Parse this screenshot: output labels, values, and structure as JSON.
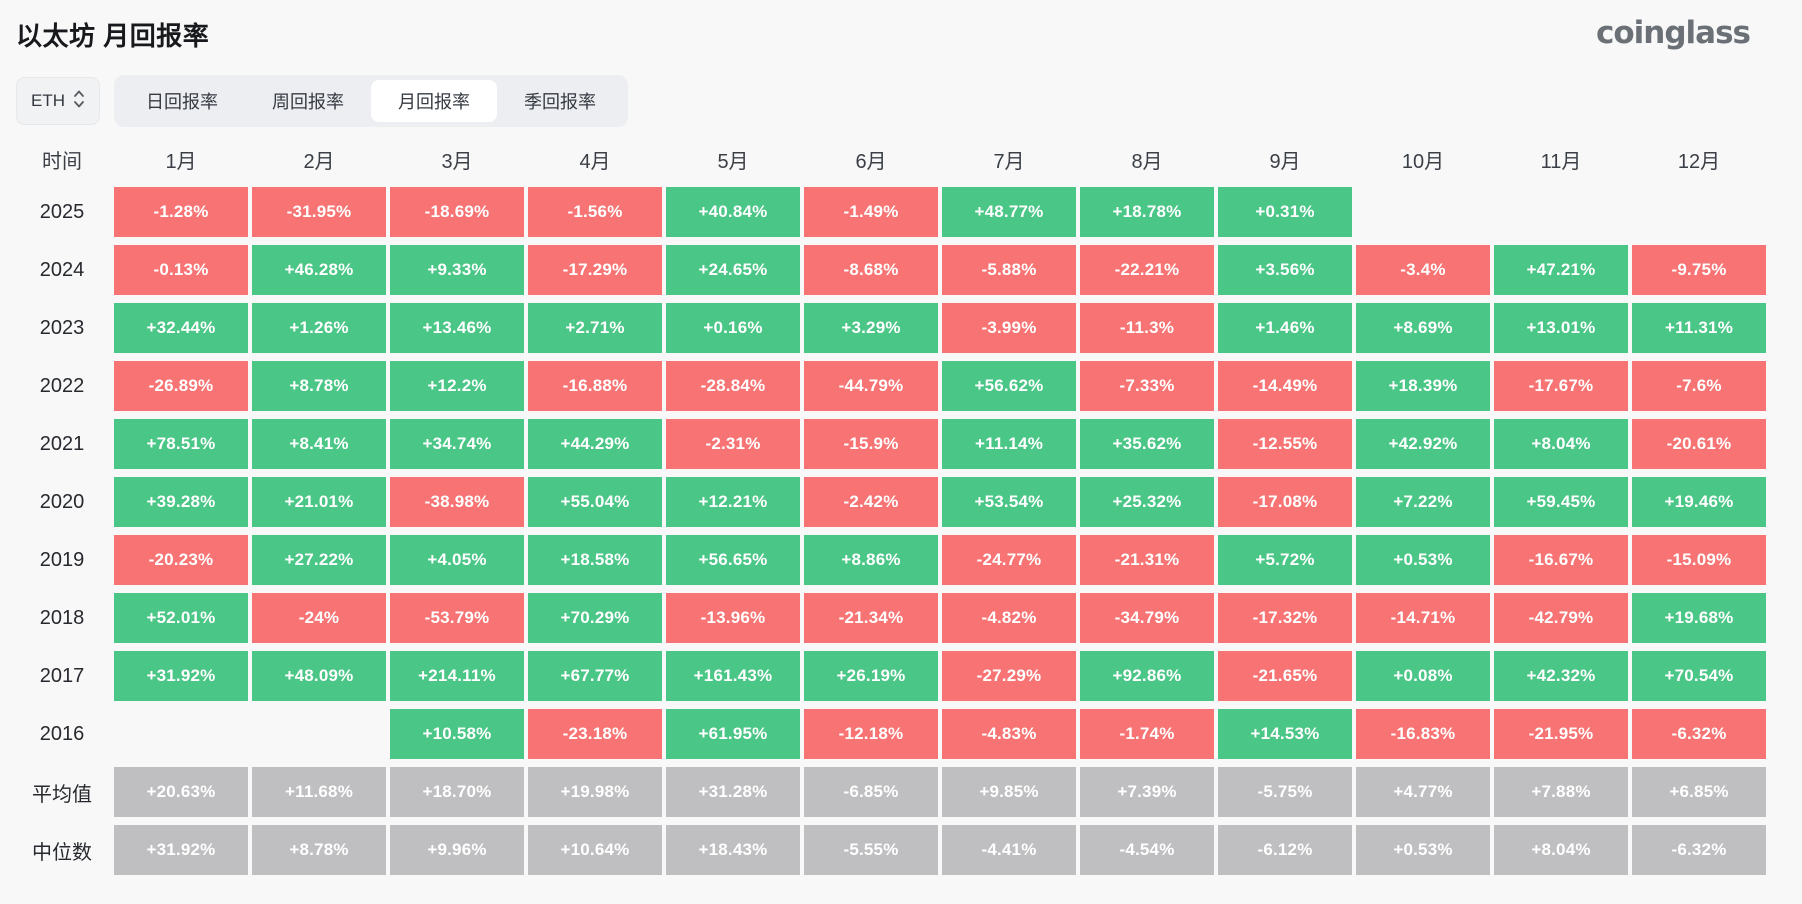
{
  "page": {
    "title": "以太坊 月回报率",
    "logo": "coinglass"
  },
  "controls": {
    "symbol_select": {
      "value": "ETH"
    },
    "tabs": [
      {
        "label": "日回报率",
        "active": false
      },
      {
        "label": "周回报率",
        "active": false
      },
      {
        "label": "月回报率",
        "active": true
      },
      {
        "label": "季回报率",
        "active": false
      }
    ]
  },
  "colors": {
    "positive": "#4ac687",
    "negative": "#f87373",
    "neutral": "#bfbfc1"
  },
  "chart_data": {
    "type": "heatmap",
    "title": "以太坊 月回报率",
    "time_header": "时间",
    "columns": [
      "1月",
      "2月",
      "3月",
      "4月",
      "5月",
      "6月",
      "7月",
      "8月",
      "9月",
      "10月",
      "11月",
      "12月"
    ],
    "rows": [
      {
        "label": "2025",
        "summary": false,
        "values": [
          "-1.28%",
          "-31.95%",
          "-18.69%",
          "-1.56%",
          "+40.84%",
          "-1.49%",
          "+48.77%",
          "+18.78%",
          "+0.31%",
          "",
          "",
          ""
        ]
      },
      {
        "label": "2024",
        "summary": false,
        "values": [
          "-0.13%",
          "+46.28%",
          "+9.33%",
          "-17.29%",
          "+24.65%",
          "-8.68%",
          "-5.88%",
          "-22.21%",
          "+3.56%",
          "-3.4%",
          "+47.21%",
          "-9.75%"
        ]
      },
      {
        "label": "2023",
        "summary": false,
        "values": [
          "+32.44%",
          "+1.26%",
          "+13.46%",
          "+2.71%",
          "+0.16%",
          "+3.29%",
          "-3.99%",
          "-11.3%",
          "+1.46%",
          "+8.69%",
          "+13.01%",
          "+11.31%"
        ]
      },
      {
        "label": "2022",
        "summary": false,
        "values": [
          "-26.89%",
          "+8.78%",
          "+12.2%",
          "-16.88%",
          "-28.84%",
          "-44.79%",
          "+56.62%",
          "-7.33%",
          "-14.49%",
          "+18.39%",
          "-17.67%",
          "-7.6%"
        ]
      },
      {
        "label": "2021",
        "summary": false,
        "values": [
          "+78.51%",
          "+8.41%",
          "+34.74%",
          "+44.29%",
          "-2.31%",
          "-15.9%",
          "+11.14%",
          "+35.62%",
          "-12.55%",
          "+42.92%",
          "+8.04%",
          "-20.61%"
        ]
      },
      {
        "label": "2020",
        "summary": false,
        "values": [
          "+39.28%",
          "+21.01%",
          "-38.98%",
          "+55.04%",
          "+12.21%",
          "-2.42%",
          "+53.54%",
          "+25.32%",
          "-17.08%",
          "+7.22%",
          "+59.45%",
          "+19.46%"
        ]
      },
      {
        "label": "2019",
        "summary": false,
        "values": [
          "-20.23%",
          "+27.22%",
          "+4.05%",
          "+18.58%",
          "+56.65%",
          "+8.86%",
          "-24.77%",
          "-21.31%",
          "+5.72%",
          "+0.53%",
          "-16.67%",
          "-15.09%"
        ]
      },
      {
        "label": "2018",
        "summary": false,
        "values": [
          "+52.01%",
          "-24%",
          "-53.79%",
          "+70.29%",
          "-13.96%",
          "-21.34%",
          "-4.82%",
          "-34.79%",
          "-17.32%",
          "-14.71%",
          "-42.79%",
          "+19.68%"
        ]
      },
      {
        "label": "2017",
        "summary": false,
        "values": [
          "+31.92%",
          "+48.09%",
          "+214.11%",
          "+67.77%",
          "+161.43%",
          "+26.19%",
          "-27.29%",
          "+92.86%",
          "-21.65%",
          "+0.08%",
          "+42.32%",
          "+70.54%"
        ]
      },
      {
        "label": "2016",
        "summary": false,
        "values": [
          "",
          "",
          "+10.58%",
          "-23.18%",
          "+61.95%",
          "-12.18%",
          "-4.83%",
          "-1.74%",
          "+14.53%",
          "-16.83%",
          "-21.95%",
          "-6.32%"
        ]
      },
      {
        "label": "平均值",
        "summary": true,
        "values": [
          "+20.63%",
          "+11.68%",
          "+18.70%",
          "+19.98%",
          "+31.28%",
          "-6.85%",
          "+9.85%",
          "+7.39%",
          "-5.75%",
          "+4.77%",
          "+7.88%",
          "+6.85%"
        ]
      },
      {
        "label": "中位数",
        "summary": true,
        "values": [
          "+31.92%",
          "+8.78%",
          "+9.96%",
          "+10.64%",
          "+18.43%",
          "-5.55%",
          "-4.41%",
          "-4.54%",
          "-6.12%",
          "+0.53%",
          "+8.04%",
          "-6.32%"
        ]
      }
    ]
  }
}
